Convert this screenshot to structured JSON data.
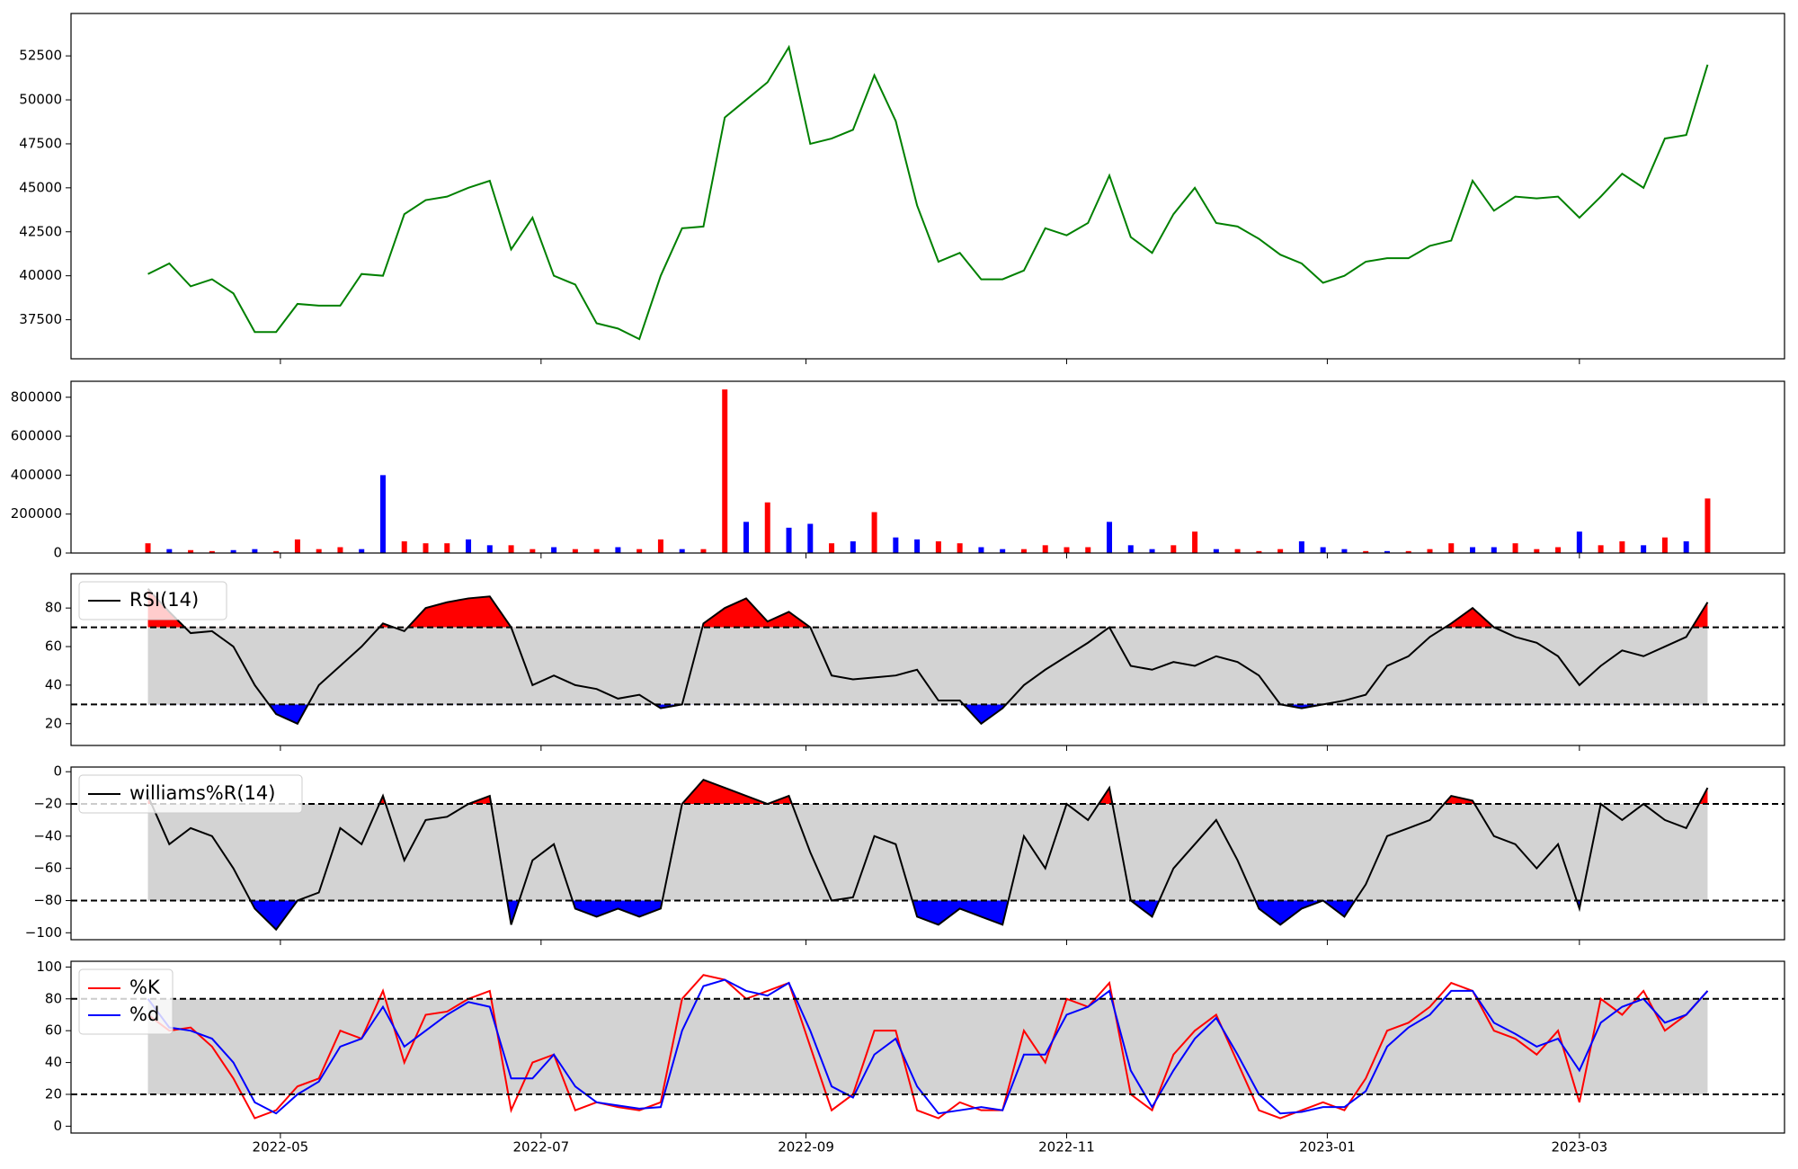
{
  "chart_data": [
    {
      "type": "line",
      "x": [
        0,
        5,
        10,
        15,
        20,
        25,
        30,
        35,
        40,
        45,
        50,
        55,
        60,
        65,
        70,
        75,
        80,
        85,
        90,
        95,
        100,
        105,
        110,
        115,
        120,
        125,
        130,
        135,
        140,
        145,
        150,
        155,
        160,
        165,
        170,
        175,
        180,
        185,
        190,
        195,
        200,
        205,
        210,
        215,
        220,
        225,
        230,
        235,
        240,
        245,
        250,
        255,
        260,
        265,
        270,
        275,
        280,
        285,
        290,
        295,
        300,
        305,
        310,
        315,
        320,
        325,
        330,
        335,
        340,
        345,
        350,
        355,
        360,
        365
      ],
      "xlim": [
        -18,
        383
      ],
      "xticks": [
        {
          "value": 31,
          "label": "2022-05"
        },
        {
          "value": 92,
          "label": "2022-07"
        },
        {
          "value": 154,
          "label": "2022-09"
        },
        {
          "value": 215,
          "label": "2022-11"
        },
        {
          "value": 276,
          "label": "2023-01"
        },
        {
          "value": 335,
          "label": "2023-03"
        }
      ],
      "ylim": [
        35280,
        54910
      ],
      "yticks": [
        37500,
        40000,
        42500,
        45000,
        47500,
        50000,
        52500
      ],
      "series": [
        {
          "color": "green",
          "values": [
            40100,
            40700,
            39400,
            39800,
            39000,
            36800,
            36800,
            38400,
            38300,
            38300,
            40100,
            40000,
            43500,
            44300,
            44500,
            45000,
            45400,
            41500,
            43300,
            40000,
            39500,
            37300,
            37000,
            36400,
            40000,
            42700,
            42800,
            49000,
            50000,
            51000,
            53000,
            47500,
            47800,
            48300,
            51400,
            48800,
            44000,
            40800,
            41300,
            39800,
            39800,
            40300,
            42700,
            42300,
            43000,
            45700,
            42200,
            41300,
            43500,
            45000,
            43000,
            42800,
            42100,
            41200,
            40700,
            39600,
            40000,
            40800,
            41000,
            41000,
            41700,
            42000,
            45400,
            43700,
            44500,
            44400,
            44500,
            43300,
            44500,
            45800,
            45000,
            47800,
            48000,
            52000
          ]
        }
      ]
    },
    {
      "type": "bar",
      "ylim": [
        0,
        882000
      ],
      "yticks": [
        0,
        200000,
        400000,
        600000,
        800000
      ],
      "values": [
        50000,
        20000,
        15000,
        10000,
        15000,
        20000,
        10000,
        70000,
        20000,
        30000,
        20000,
        400000,
        60000,
        50000,
        50000,
        70000,
        40000,
        40000,
        20000,
        30000,
        20000,
        20000,
        30000,
        20000,
        70000,
        20000,
        20000,
        840000,
        160000,
        260000,
        130000,
        150000,
        50000,
        60000,
        210000,
        80000,
        70000,
        60000,
        50000,
        30000,
        20000,
        20000,
        40000,
        30000,
        30000,
        160000,
        40000,
        20000,
        40000,
        110000,
        20000,
        20000,
        10000,
        20000,
        60000,
        30000,
        20000,
        10000,
        10000,
        10000,
        20000,
        50000,
        30000,
        30000,
        50000,
        20000,
        30000,
        110000,
        40000,
        60000,
        40000,
        80000,
        60000,
        280000
      ],
      "bar_colors": [
        "red",
        "blue",
        "red",
        "red",
        "blue",
        "blue",
        "red",
        "red",
        "red",
        "red",
        "blue",
        "blue",
        "red",
        "red",
        "red",
        "blue",
        "blue",
        "red",
        "red",
        "blue",
        "red",
        "red",
        "blue",
        "red",
        "red",
        "blue",
        "red",
        "red",
        "blue",
        "red",
        "blue",
        "blue",
        "red",
        "blue",
        "red",
        "blue",
        "blue",
        "red",
        "red",
        "blue",
        "blue",
        "red",
        "red",
        "red",
        "red",
        "blue",
        "blue",
        "blue",
        "red",
        "red",
        "blue",
        "red",
        "red",
        "red",
        "blue",
        "blue",
        "blue",
        "red",
        "blue",
        "red",
        "red",
        "red",
        "blue",
        "blue",
        "red",
        "red",
        "red",
        "blue",
        "red",
        "red",
        "blue",
        "red",
        "blue",
        "red"
      ]
    },
    {
      "type": "line",
      "ylim": [
        8.7,
        97.8
      ],
      "yticks": [
        20,
        40,
        60,
        80
      ],
      "thresholds": [
        70,
        30
      ],
      "band_color": "#d3d3d3",
      "above_color": "red",
      "below_color": "blue",
      "legend": "upper left",
      "series": [
        {
          "name": "RSI(14)",
          "color": "black",
          "values": [
            90,
            78,
            67,
            68,
            60,
            40,
            25,
            20,
            40,
            50,
            60,
            72,
            68,
            80,
            83,
            85,
            86,
            70,
            40,
            45,
            40,
            38,
            33,
            35,
            28,
            30,
            72,
            80,
            85,
            73,
            78,
            70,
            45,
            43,
            44,
            45,
            48,
            32,
            32,
            20,
            28,
            40,
            48,
            55,
            62,
            70,
            50,
            48,
            52,
            50,
            55,
            52,
            45,
            30,
            28,
            30,
            32,
            35,
            50,
            55,
            65,
            72,
            80,
            70,
            65,
            62,
            55,
            40,
            50,
            58,
            55,
            60,
            65,
            83
          ]
        }
      ]
    },
    {
      "type": "line",
      "ylim": [
        -104.3,
        2.9
      ],
      "yticks": [
        {
          "value": -100,
          "label": "−100"
        },
        {
          "value": -80,
          "label": "−80"
        },
        {
          "value": -60,
          "label": "−60"
        },
        {
          "value": -40,
          "label": "−40"
        },
        {
          "value": -20,
          "label": "−20"
        },
        0
      ],
      "thresholds": [
        -20,
        -80
      ],
      "band_color": "#d3d3d3",
      "above_color": "red",
      "below_color": "blue",
      "legend": "upper left",
      "series": [
        {
          "name": "williams%R(14)",
          "color": "black",
          "values": [
            -15,
            -45,
            -35,
            -40,
            -60,
            -85,
            -98,
            -80,
            -75,
            -35,
            -45,
            -15,
            -55,
            -30,
            -28,
            -20,
            -15,
            -95,
            -55,
            -45,
            -85,
            -90,
            -85,
            -90,
            -85,
            -20,
            -5,
            -10,
            -15,
            -20,
            -15,
            -50,
            -80,
            -78,
            -40,
            -45,
            -90,
            -95,
            -85,
            -90,
            -95,
            -40,
            -60,
            -20,
            -30,
            -10,
            -80,
            -90,
            -60,
            -45,
            -30,
            -55,
            -85,
            -95,
            -85,
            -80,
            -90,
            -70,
            -40,
            -35,
            -30,
            -15,
            -18,
            -40,
            -45,
            -60,
            -45,
            -85,
            -20,
            -30,
            -20,
            -30,
            -35,
            -10
          ]
        }
      ]
    },
    {
      "type": "line",
      "ylim": [
        -4.3,
        103.6
      ],
      "yticks": [
        0,
        20,
        40,
        60,
        80,
        100
      ],
      "thresholds": [
        80,
        20
      ],
      "band_color": "#d3d3d3",
      "legend": "upper left",
      "series": [
        {
          "name": "%K",
          "color": "red",
          "values": [
            70,
            60,
            62,
            50,
            30,
            5,
            10,
            25,
            30,
            60,
            55,
            85,
            40,
            70,
            72,
            80,
            85,
            10,
            40,
            45,
            10,
            15,
            12,
            10,
            15,
            80,
            95,
            92,
            80,
            85,
            90,
            50,
            10,
            20,
            60,
            60,
            10,
            5,
            15,
            10,
            10,
            60,
            40,
            80,
            75,
            90,
            20,
            10,
            45,
            60,
            70,
            40,
            10,
            5,
            10,
            15,
            10,
            30,
            60,
            65,
            75,
            90,
            85,
            60,
            55,
            45,
            60,
            15,
            80,
            70,
            85,
            60,
            70,
            85
          ]
        },
        {
          "name": "%d",
          "color": "blue",
          "values": [
            80,
            62,
            60,
            55,
            40,
            15,
            8,
            20,
            28,
            50,
            55,
            75,
            50,
            60,
            70,
            78,
            75,
            30,
            30,
            45,
            25,
            15,
            13,
            11,
            12,
            60,
            88,
            92,
            85,
            82,
            90,
            60,
            25,
            18,
            45,
            55,
            25,
            8,
            10,
            12,
            10,
            45,
            45,
            70,
            75,
            85,
            35,
            12,
            35,
            55,
            68,
            45,
            20,
            8,
            9,
            12,
            12,
            22,
            50,
            62,
            70,
            85,
            85,
            65,
            58,
            50,
            55,
            35,
            65,
            75,
            80,
            65,
            70,
            85
          ]
        }
      ]
    }
  ]
}
